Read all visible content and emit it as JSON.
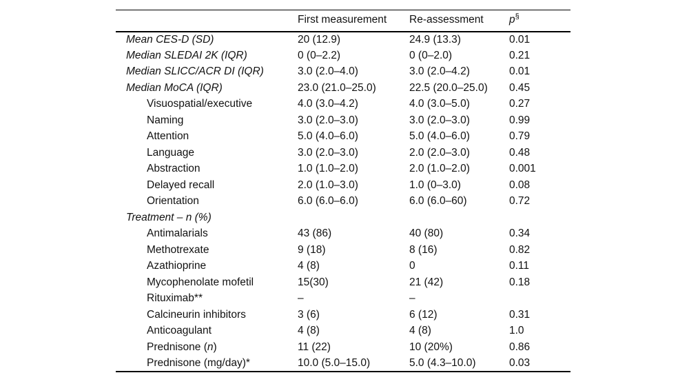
{
  "page": {
    "background_color": "#ffffff",
    "text_color": "#111111",
    "rule_color": "#000000"
  },
  "table": {
    "header": {
      "col0": "",
      "col1": "First measurement",
      "col2": "Re-assessment",
      "col3_main": "p",
      "col3_sup": "§"
    },
    "rows": [
      {
        "label": "Mean CES-D (SD)",
        "italic": true,
        "indent": false,
        "c1": "20 (12.9)",
        "c2": "24.9 (13.3)",
        "c3": "0.01"
      },
      {
        "label": "Median SLEDAI 2K (IQR)",
        "italic": true,
        "indent": false,
        "c1": "0 (0–2.2)",
        "c2": "0 (0–2.0)",
        "c3": "0.21"
      },
      {
        "label": "Median SLICC/ACR DI (IQR)",
        "italic": true,
        "indent": false,
        "c1": "3.0 (2.0–4.0)",
        "c2": "3.0 (2.0–4.2)",
        "c3": "0.01"
      },
      {
        "label": "Median MoCA (IQR)",
        "italic": true,
        "indent": false,
        "c1": "23.0 (21.0–25.0)",
        "c2": "22.5 (20.0–25.0)",
        "c3": "0.45"
      },
      {
        "label": "Visuospatial/executive",
        "italic": false,
        "indent": true,
        "c1": "4.0 (3.0–4.2)",
        "c2": "4.0 (3.0–5.0)",
        "c3": "0.27"
      },
      {
        "label": "Naming",
        "italic": false,
        "indent": true,
        "c1": "3.0 (2.0–3.0)",
        "c2": "3.0 (2.0–3.0)",
        "c3": "0.99"
      },
      {
        "label": "Attention",
        "italic": false,
        "indent": true,
        "c1": "5.0 (4.0–6.0)",
        "c2": "5.0 (4.0–6.0)",
        "c3": "0.79"
      },
      {
        "label": "Language",
        "italic": false,
        "indent": true,
        "c1": "3.0 (2.0–3.0)",
        "c2": "2.0 (2.0–3.0)",
        "c3": "0.48"
      },
      {
        "label": "Abstraction",
        "italic": false,
        "indent": true,
        "c1": "1.0 (1.0–2.0)",
        "c2": "2.0 (1.0–2.0)",
        "c3": "0.001"
      },
      {
        "label": "Delayed recall",
        "italic": false,
        "indent": true,
        "c1": "2.0 (1.0–3.0)",
        "c2": "1.0 (0–3.0)",
        "c3": "0.08"
      },
      {
        "label": "Orientation",
        "italic": false,
        "indent": true,
        "c1": "6.0 (6.0–6.0)",
        "c2": "6.0 (6.0–60)",
        "c3": "0.72"
      },
      {
        "label": "Treatment – n (%)",
        "italic": true,
        "indent": false,
        "c1": "",
        "c2": "",
        "c3": ""
      },
      {
        "label": "Antimalarials",
        "italic": false,
        "indent": true,
        "c1": "43 (86)",
        "c2": "40 (80)",
        "c3": "0.34"
      },
      {
        "label": "Methotrexate",
        "italic": false,
        "indent": true,
        "c1": "9 (18)",
        "c2": "8 (16)",
        "c3": "0.82"
      },
      {
        "label": "Azathioprine",
        "italic": false,
        "indent": true,
        "c1": "4 (8)",
        "c2": "0",
        "c3": "0.11"
      },
      {
        "label": "Mycophenolate mofetil",
        "italic": false,
        "indent": true,
        "c1": "15(30)",
        "c2": "21 (42)",
        "c3": "0.18"
      },
      {
        "label": "Rituximab**",
        "italic": false,
        "indent": true,
        "c1": "–",
        "c2": "–",
        "c3": ""
      },
      {
        "label": "Calcineurin inhibitors",
        "italic": false,
        "indent": true,
        "c1": "3 (6)",
        "c2": "6 (12)",
        "c3": "0.31"
      },
      {
        "label": "Anticoagulant",
        "italic": false,
        "indent": true,
        "c1": "4 (8)",
        "c2": "4 (8)",
        "c3": "1.0"
      },
      {
        "label": "Prednisone ({{n}})",
        "italic": false,
        "indent": true,
        "c1": "11 (22)",
        "c2": "10 (20%)",
        "c3": "0.86"
      },
      {
        "label": "Prednisone (mg/day)*",
        "italic": false,
        "indent": true,
        "c1": "10.0 (5.0–15.0)",
        "c2": "5.0 (4.3–10.0)",
        "c3": "0.03"
      }
    ]
  }
}
